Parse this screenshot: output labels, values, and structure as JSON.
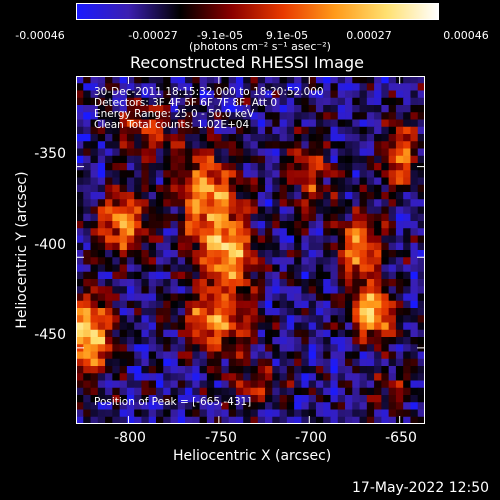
{
  "colorbar": {
    "tick_labels": [
      "-0.00046",
      "-0.00027",
      "-9.1e-05",
      "9.1e-05",
      "0.00027",
      "0.00046"
    ],
    "unit_label": "(photons cm⁻² s⁻¹ asec⁻²)",
    "colormap": [
      "#1a1aff",
      "#3b1fb0",
      "#000000",
      "#8a0000",
      "#e83a00",
      "#ff9a1a",
      "#ffe070",
      "#ffffff"
    ]
  },
  "annotations": {
    "time": "30-Dec-2011 18:15:32.000 to 18:20:52.000",
    "detectors": "Detectors: 3F 4F 5F 6F 7F 8F, Att 0",
    "energy": "Energy Range: 25.0 - 50.0 keV",
    "clean": "Clean    Total counts: 1.02E+04",
    "peak": "Position of Peak = [-665,-431]"
  },
  "footer": {
    "date": "17-May-2022 12:50"
  },
  "chart_data": {
    "type": "heatmap",
    "title": "Reconstructed RHESSI Image",
    "xlabel": "Heliocentric X (arcsec)",
    "ylabel": "Heliocentric Y (arcsec)",
    "x_ticks": [
      "-800",
      "-750",
      "-700",
      "-650"
    ],
    "y_ticks": [
      "-350",
      "-400",
      "-450"
    ],
    "x_tick_values": [
      -800,
      -750,
      -700,
      -650
    ],
    "y_tick_values": [
      -350,
      -400,
      -450
    ],
    "xlim": [
      -829,
      -636
    ],
    "ylim": [
      -492,
      -300
    ],
    "zlim": [
      -0.00046,
      0.00046
    ],
    "peak": [
      -665,
      -431
    ],
    "sources": [
      {
        "x": -822,
        "y": -443,
        "amp": 1.0,
        "sx": 9,
        "sy": 16
      },
      {
        "x": -803,
        "y": -381,
        "amp": 0.8,
        "sx": 10,
        "sy": 12
      },
      {
        "x": -790,
        "y": -330,
        "amp": 0.55,
        "sx": 12,
        "sy": 10
      },
      {
        "x": -757,
        "y": -365,
        "amp": 0.85,
        "sx": 12,
        "sy": 16
      },
      {
        "x": -745,
        "y": -398,
        "amp": 0.9,
        "sx": 11,
        "sy": 14
      },
      {
        "x": -752,
        "y": -435,
        "amp": 0.75,
        "sx": 14,
        "sy": 12
      },
      {
        "x": -730,
        "y": -470,
        "amp": 0.45,
        "sx": 12,
        "sy": 8
      },
      {
        "x": -700,
        "y": -355,
        "amp": 0.5,
        "sx": 10,
        "sy": 14
      },
      {
        "x": -672,
        "y": -395,
        "amp": 0.75,
        "sx": 9,
        "sy": 14
      },
      {
        "x": -665,
        "y": -431,
        "amp": 1.0,
        "sx": 8,
        "sy": 10
      },
      {
        "x": -650,
        "y": -345,
        "amp": 0.65,
        "sx": 8,
        "sy": 14
      },
      {
        "x": -655,
        "y": -475,
        "amp": 0.35,
        "sx": 10,
        "sy": 8
      }
    ]
  }
}
